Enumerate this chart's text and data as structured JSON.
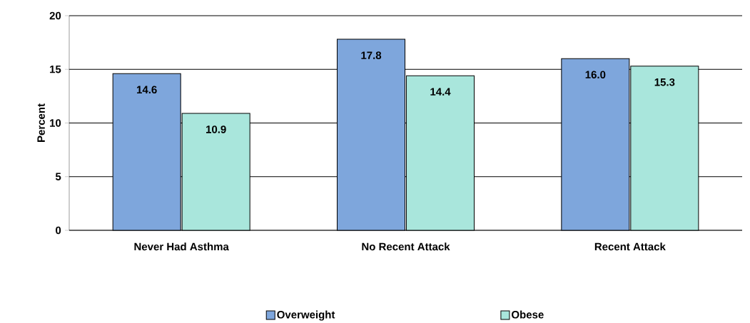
{
  "chart_data": {
    "type": "bar",
    "ylabel": "Percent",
    "categories": [
      "Never Had Asthma",
      "No Recent Attack",
      "Recent Attack"
    ],
    "series": [
      {
        "name": "Overweight",
        "color": "#7ea6dc",
        "values": [
          14.6,
          17.8,
          16.0
        ],
        "value_labels": [
          "14.6",
          "17.8",
          "16.0"
        ]
      },
      {
        "name": "Obese",
        "color": "#a9e6dc",
        "values": [
          10.9,
          14.4,
          15.3
        ],
        "value_labels": [
          "10.9",
          "14.4",
          "15.3"
        ]
      }
    ],
    "ylim": [
      0,
      20
    ],
    "yticks": [
      0,
      5,
      10,
      15,
      20
    ],
    "grid": "y",
    "legend": "bottom"
  }
}
